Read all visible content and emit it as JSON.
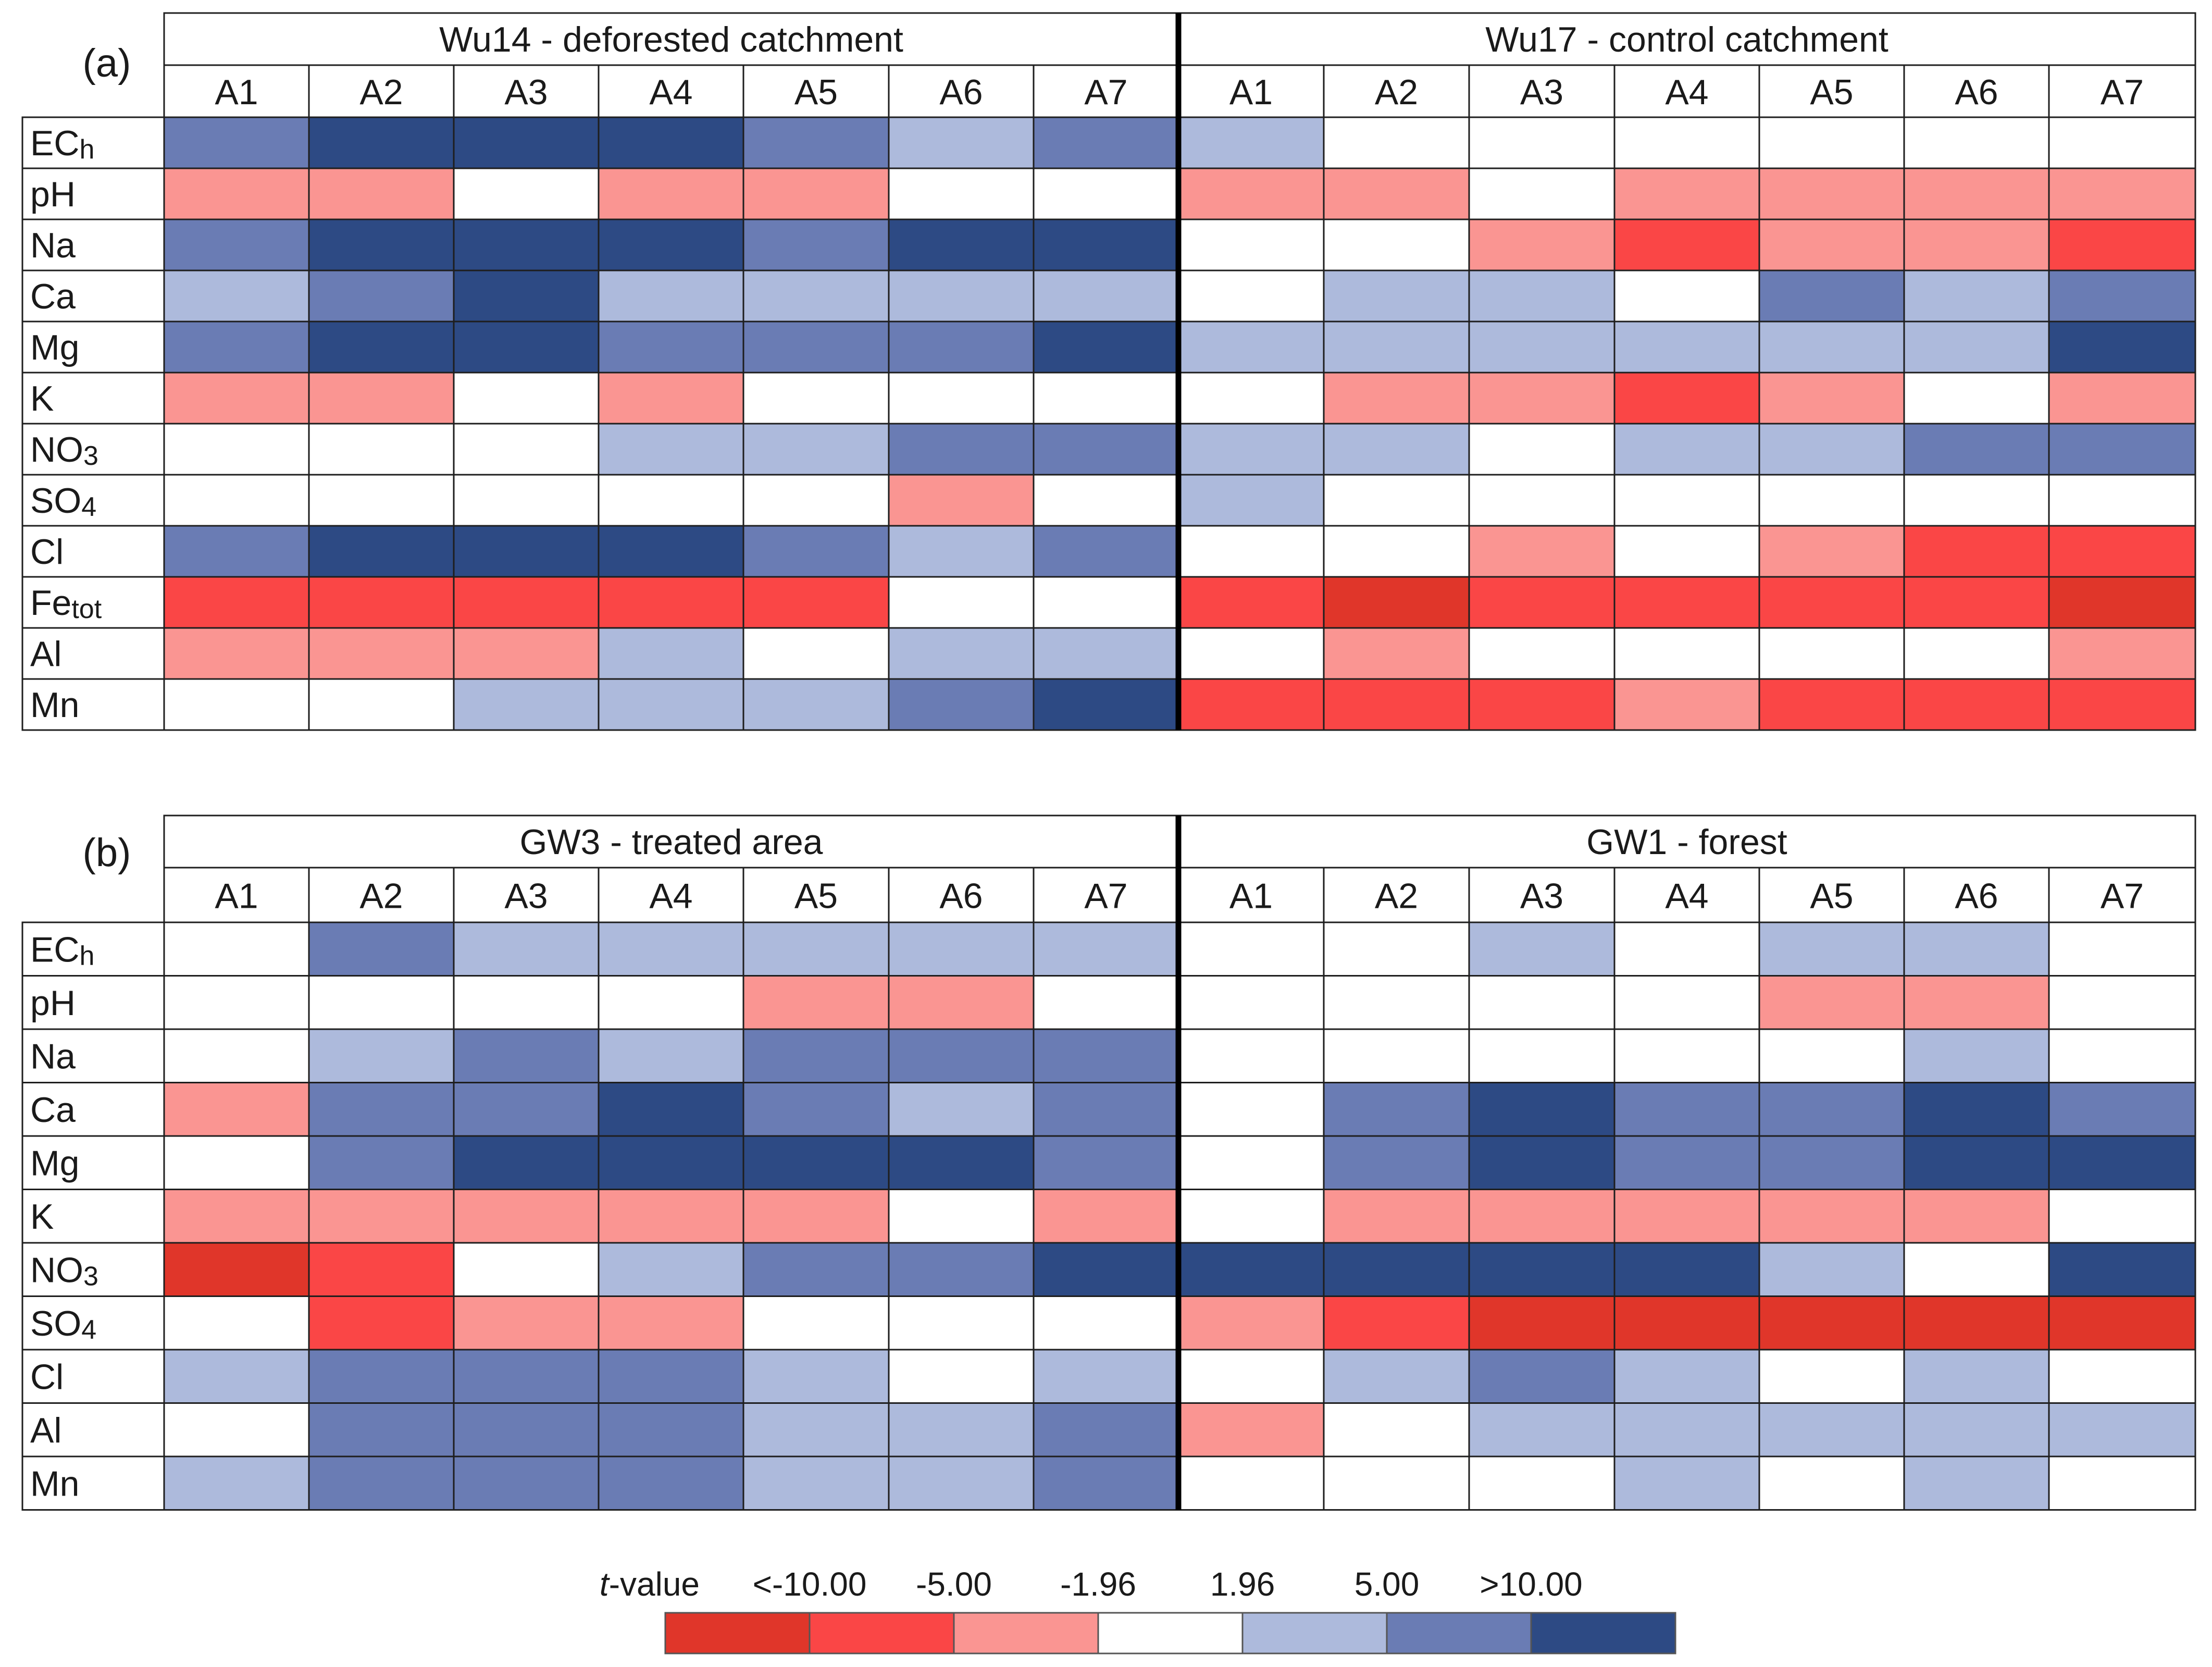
{
  "chart_data": [
    {
      "type": "heatmap",
      "panel_label": "(a)",
      "groups": [
        {
          "title": "Wu14 - deforested catchment",
          "columns": [
            "A1",
            "A2",
            "A3",
            "A4",
            "A5",
            "A6",
            "A7"
          ]
        },
        {
          "title": "Wu17 - control catchment",
          "columns": [
            "A1",
            "A2",
            "A3",
            "A4",
            "A5",
            "A6",
            "A7"
          ]
        }
      ],
      "rows": [
        {
          "main": "EC",
          "sub": "h"
        },
        {
          "main": "pH",
          "sub": ""
        },
        {
          "main": "Na",
          "sub": ""
        },
        {
          "main": "Ca",
          "sub": ""
        },
        {
          "main": "Mg",
          "sub": ""
        },
        {
          "main": "K",
          "sub": ""
        },
        {
          "main": "NO",
          "sub": "3"
        },
        {
          "main": "SO",
          "sub": "4"
        },
        {
          "main": "Cl",
          "sub": ""
        },
        {
          "main": "Fe",
          "sub": "tot"
        },
        {
          "main": "Al",
          "sub": ""
        },
        {
          "main": "Mn",
          "sub": ""
        }
      ],
      "values": [
        [
          5,
          6,
          6,
          6,
          5,
          4,
          5,
          4,
          3,
          3,
          3,
          3,
          3,
          3
        ],
        [
          2,
          2,
          3,
          2,
          2,
          3,
          3,
          2,
          2,
          3,
          2,
          2,
          2,
          2
        ],
        [
          5,
          6,
          6,
          6,
          5,
          6,
          6,
          3,
          3,
          2,
          1,
          2,
          2,
          1
        ],
        [
          4,
          5,
          6,
          4,
          4,
          4,
          4,
          3,
          4,
          4,
          3,
          5,
          4,
          5
        ],
        [
          5,
          6,
          6,
          5,
          5,
          5,
          6,
          4,
          4,
          4,
          4,
          4,
          4,
          6
        ],
        [
          2,
          2,
          3,
          2,
          3,
          3,
          3,
          3,
          2,
          2,
          1,
          2,
          3,
          2
        ],
        [
          3,
          3,
          3,
          4,
          4,
          5,
          5,
          4,
          4,
          3,
          4,
          4,
          5,
          5
        ],
        [
          3,
          3,
          3,
          3,
          3,
          2,
          3,
          4,
          3,
          3,
          3,
          3,
          3,
          3
        ],
        [
          5,
          6,
          6,
          6,
          5,
          4,
          5,
          3,
          3,
          2,
          3,
          2,
          1,
          1
        ],
        [
          1,
          1,
          1,
          1,
          1,
          3,
          3,
          1,
          0,
          1,
          1,
          1,
          1,
          0
        ],
        [
          2,
          2,
          2,
          4,
          3,
          4,
          4,
          3,
          2,
          3,
          3,
          3,
          3,
          2
        ],
        [
          3,
          3,
          4,
          4,
          4,
          5,
          6,
          1,
          1,
          1,
          2,
          1,
          1,
          1
        ]
      ]
    },
    {
      "type": "heatmap",
      "panel_label": "(b)",
      "groups": [
        {
          "title": "GW3 - treated area",
          "columns": [
            "A1",
            "A2",
            "A3",
            "A4",
            "A5",
            "A6",
            "A7"
          ]
        },
        {
          "title": "GW1 - forest",
          "columns": [
            "A1",
            "A2",
            "A3",
            "A4",
            "A5",
            "A6",
            "A7"
          ]
        }
      ],
      "rows": [
        {
          "main": "EC",
          "sub": "h"
        },
        {
          "main": "pH",
          "sub": ""
        },
        {
          "main": "Na",
          "sub": ""
        },
        {
          "main": "Ca",
          "sub": ""
        },
        {
          "main": "Mg",
          "sub": ""
        },
        {
          "main": "K",
          "sub": ""
        },
        {
          "main": "NO",
          "sub": "3"
        },
        {
          "main": "SO",
          "sub": "4"
        },
        {
          "main": "Cl",
          "sub": ""
        },
        {
          "main": "Al",
          "sub": ""
        },
        {
          "main": "Mn",
          "sub": ""
        }
      ],
      "values": [
        [
          3,
          5,
          4,
          4,
          4,
          4,
          4,
          3,
          3,
          4,
          3,
          4,
          4,
          3
        ],
        [
          3,
          3,
          3,
          3,
          2,
          2,
          3,
          3,
          3,
          3,
          3,
          2,
          2,
          3
        ],
        [
          3,
          4,
          5,
          4,
          5,
          5,
          5,
          3,
          3,
          3,
          3,
          3,
          4,
          3
        ],
        [
          2,
          5,
          5,
          6,
          5,
          4,
          5,
          3,
          5,
          6,
          5,
          5,
          6,
          5
        ],
        [
          3,
          5,
          6,
          6,
          6,
          6,
          5,
          3,
          5,
          6,
          5,
          5,
          6,
          6
        ],
        [
          2,
          2,
          2,
          2,
          2,
          3,
          2,
          3,
          2,
          2,
          2,
          2,
          2,
          3
        ],
        [
          0,
          1,
          3,
          4,
          5,
          5,
          6,
          6,
          6,
          6,
          6,
          4,
          3,
          6
        ],
        [
          3,
          1,
          2,
          2,
          3,
          3,
          3,
          2,
          1,
          0,
          0,
          0,
          0,
          0
        ],
        [
          4,
          5,
          5,
          5,
          4,
          3,
          4,
          3,
          4,
          5,
          4,
          3,
          4,
          3
        ],
        [
          3,
          5,
          5,
          5,
          4,
          4,
          5,
          2,
          3,
          4,
          4,
          4,
          4,
          4
        ],
        [
          4,
          5,
          5,
          5,
          4,
          4,
          5,
          3,
          3,
          3,
          4,
          3,
          4,
          3
        ]
      ]
    }
  ],
  "legend": {
    "title_italic": "t",
    "title_rest": "-value",
    "ticks": [
      "<-10.00",
      "-5.00",
      "-1.96",
      "1.96",
      "5.00",
      ">10.00"
    ]
  },
  "colors": [
    "#e0362a",
    "#fa4646",
    "#fa9592",
    "#ffffff",
    "#adbadc",
    "#6a7cb4",
    "#2d4a84"
  ]
}
